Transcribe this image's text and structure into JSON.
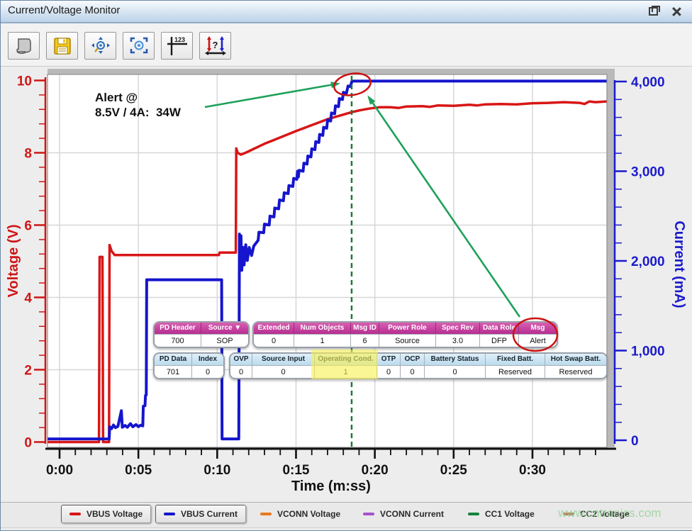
{
  "window": {
    "title": "Current/Voltage Monitor"
  },
  "toolbar": {
    "icon_123": "123",
    "icon_q": "?",
    "buttons": [
      "report",
      "save",
      "zoom-extents",
      "zoom-window",
      "cursor-values",
      "compare-cursors"
    ]
  },
  "annotation": {
    "line1": "Alert @",
    "line2": "8.5V / 4A:  34W"
  },
  "watermark": {
    "text": "www.cntronics.com"
  },
  "chart_data": {
    "type": "line",
    "x_axis": {
      "label": "Time (m:ss)",
      "ticks": [
        "0:00",
        "0:05",
        "0:10",
        "0:15",
        "0:20",
        "0:25",
        "0:30"
      ],
      "tick_seconds": [
        0,
        5,
        10,
        15,
        20,
        25,
        30
      ],
      "minor_step_seconds": 1,
      "range_seconds": [
        -0.75,
        34.7
      ]
    },
    "y_left": {
      "label": "Voltage (V)",
      "ticks": [
        "10",
        "8",
        "6",
        "4",
        "2",
        "0"
      ],
      "tick_values": [
        10,
        8,
        6,
        4,
        2,
        0
      ],
      "minor_step": 0.4,
      "range": [
        0,
        10.2
      ],
      "color": "#cf1616"
    },
    "y_right": {
      "label": "Current (mA)",
      "ticks": [
        "4,000",
        "3,000",
        "2,000",
        "1,000",
        "0"
      ],
      "tick_values": [
        4000,
        3000,
        2000,
        1000,
        0
      ],
      "minor_step": 200,
      "range": [
        0,
        4200
      ],
      "color": "#1a1acc"
    },
    "gridline_voltages": [
      2,
      4,
      6,
      8
    ],
    "grid": true,
    "cursor": {
      "time_seconds": 18.53,
      "color": "#1c7a33",
      "style": "dashed"
    },
    "series": [
      {
        "name": "VBUS Voltage",
        "axis": "left",
        "color": "#d81616",
        "points": [
          [
            -0.75,
            0
          ],
          [
            2.5,
            0
          ],
          [
            2.54,
            5.12
          ],
          [
            2.72,
            5.12
          ],
          [
            2.76,
            0
          ],
          [
            3.14,
            0
          ],
          [
            3.17,
            5.45
          ],
          [
            3.3,
            5.28
          ],
          [
            3.5,
            5.17
          ],
          [
            10.1,
            5.17
          ],
          [
            10.15,
            5.24
          ],
          [
            11.18,
            5.24
          ],
          [
            11.21,
            8.12
          ],
          [
            11.3,
            8.0
          ],
          [
            11.5,
            7.95
          ],
          [
            11.8,
            8.0
          ],
          [
            13,
            8.25
          ],
          [
            15,
            8.6
          ],
          [
            17,
            8.93
          ],
          [
            18.5,
            9.12
          ],
          [
            19,
            9.17
          ],
          [
            19.6,
            9.22
          ],
          [
            20.3,
            9.26
          ],
          [
            21,
            9.26
          ],
          [
            21.5,
            9.24
          ],
          [
            22,
            9.28
          ],
          [
            23,
            9.29
          ],
          [
            23.5,
            9.27
          ],
          [
            24,
            9.31
          ],
          [
            25,
            9.3
          ],
          [
            26,
            9.33
          ],
          [
            26.5,
            9.31
          ],
          [
            27,
            9.34
          ],
          [
            28,
            9.35
          ],
          [
            29,
            9.34
          ],
          [
            30,
            9.37
          ],
          [
            31,
            9.38
          ],
          [
            32,
            9.4
          ],
          [
            33,
            9.38
          ],
          [
            33.3,
            9.35
          ],
          [
            33.6,
            9.42
          ],
          [
            34,
            9.4
          ],
          [
            34.7,
            9.42
          ]
        ]
      },
      {
        "name": "VBUS Current",
        "axis": "right",
        "color": "#1515cd",
        "points": [
          [
            -0.75,
            15
          ],
          [
            3.15,
            15
          ],
          [
            3.18,
            150
          ],
          [
            3.3,
            130
          ],
          [
            3.42,
            170
          ],
          [
            3.55,
            140
          ],
          [
            3.7,
            155
          ],
          [
            3.92,
            330
          ],
          [
            3.98,
            145
          ],
          [
            4.15,
            165
          ],
          [
            4.3,
            145
          ],
          [
            4.5,
            185
          ],
          [
            4.65,
            150
          ],
          [
            4.85,
            175
          ],
          [
            5.0,
            152
          ],
          [
            5.15,
            168
          ],
          [
            5.28,
            160
          ],
          [
            5.31,
            380
          ],
          [
            5.42,
            385
          ],
          [
            5.45,
            500
          ],
          [
            5.5,
            505
          ],
          [
            5.53,
            1790
          ],
          [
            10.28,
            1790
          ],
          [
            10.31,
            15
          ],
          [
            11.37,
            15
          ],
          [
            11.41,
            2300
          ],
          [
            11.46,
            1945
          ],
          [
            11.51,
            2280
          ],
          [
            11.56,
            1895
          ],
          [
            11.64,
            2150
          ],
          [
            11.71,
            1955
          ],
          [
            11.81,
            2180
          ],
          [
            11.91,
            2005
          ],
          [
            12.03,
            2150
          ],
          [
            12.18,
            2060
          ],
          [
            12.32,
            2165
          ],
          [
            12.6,
            2230
          ],
          [
            12.65,
            2320
          ],
          [
            12.95,
            2315
          ],
          [
            13.0,
            2410
          ],
          [
            13.3,
            2400
          ],
          [
            13.35,
            2500
          ],
          [
            13.6,
            2490
          ],
          [
            13.65,
            2590
          ],
          [
            13.9,
            2580
          ],
          [
            13.95,
            2680
          ],
          [
            14.2,
            2670
          ],
          [
            14.25,
            2760
          ],
          [
            14.5,
            2750
          ],
          [
            14.55,
            2840
          ],
          [
            14.8,
            2830
          ],
          [
            14.85,
            2920
          ],
          [
            15.05,
            2910
          ],
          [
            15.1,
            3000
          ],
          [
            15.15,
            2935
          ],
          [
            15.2,
            3010
          ],
          [
            15.45,
            3000
          ],
          [
            15.5,
            3090
          ],
          [
            15.7,
            3080
          ],
          [
            15.75,
            3170
          ],
          [
            15.95,
            3160
          ],
          [
            16.0,
            3250
          ],
          [
            16.2,
            3240
          ],
          [
            16.25,
            3330
          ],
          [
            16.45,
            3320
          ],
          [
            16.5,
            3410
          ],
          [
            16.7,
            3400
          ],
          [
            16.75,
            3490
          ],
          [
            16.95,
            3480
          ],
          [
            17.0,
            3570
          ],
          [
            17.2,
            3560
          ],
          [
            17.25,
            3650
          ],
          [
            17.45,
            3640
          ],
          [
            17.5,
            3730
          ],
          [
            17.7,
            3720
          ],
          [
            17.75,
            3810
          ],
          [
            17.95,
            3800
          ],
          [
            18.0,
            3880
          ],
          [
            18.2,
            3870
          ],
          [
            18.3,
            3950
          ],
          [
            18.45,
            3945
          ],
          [
            18.55,
            4005
          ],
          [
            34.7,
            4005
          ]
        ]
      }
    ]
  },
  "pd_tables": {
    "message_row": {
      "groups": [
        {
          "columns": [
            {
              "label": "PD Header",
              "value": "700"
            },
            {
              "label": "Source ▼",
              "value": "SOP"
            }
          ]
        },
        {
          "columns": [
            {
              "label": "Extended",
              "value": "0"
            },
            {
              "label": "Num Objects",
              "value": "1"
            },
            {
              "label": "Msg ID",
              "value": "6"
            },
            {
              "label": "Power Role",
              "value": "Source"
            },
            {
              "label": "Spec Rev",
              "value": "3.0"
            },
            {
              "label": "Data Role",
              "value": "DFP"
            },
            {
              "label": "Msg",
              "value": "Alert"
            }
          ]
        }
      ]
    },
    "data_row": {
      "groups": [
        {
          "columns": [
            {
              "label": "PD Data",
              "value": "701"
            },
            {
              "label": "Index",
              "value": "0"
            }
          ]
        },
        {
          "columns": [
            {
              "label": "OVP",
              "value": "0"
            },
            {
              "label": "Source Input",
              "value": "0"
            },
            {
              "label": "Operating Cond.",
              "value": "1",
              "highlight": true
            },
            {
              "label": "OTP",
              "value": "0"
            },
            {
              "label": "OCP",
              "value": "0"
            },
            {
              "label": "Battery Status",
              "value": "0"
            },
            {
              "label": "Fixed Batt.",
              "value": "Reserved"
            },
            {
              "label": "Hot Swap Batt.",
              "value": "Reserved"
            }
          ]
        }
      ]
    }
  },
  "legend": {
    "items": [
      {
        "label": "VBUS Voltage",
        "color": "#d81616",
        "framed": true
      },
      {
        "label": "VBUS Current",
        "color": "#1515cd",
        "framed": true
      },
      {
        "label": "VCONN Voltage",
        "color": "#e87a1e",
        "framed": false
      },
      {
        "label": "VCONN Current",
        "color": "#a453cc",
        "framed": false
      },
      {
        "label": "CC1 Voltage",
        "color": "#15833c",
        "framed": false
      },
      {
        "label": "CC2 Voltage",
        "color": "#b17a52",
        "framed": false
      }
    ]
  }
}
